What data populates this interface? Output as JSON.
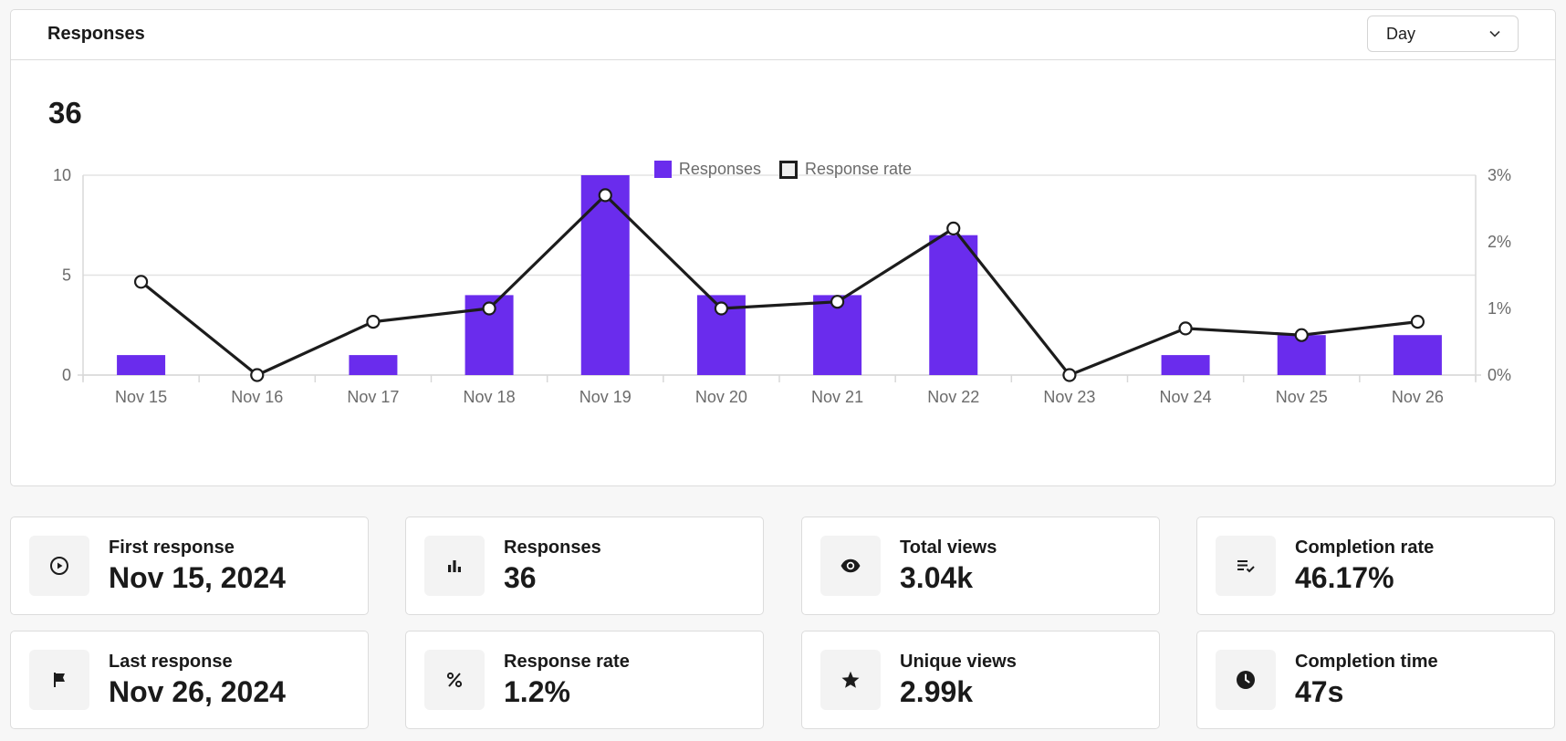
{
  "panel": {
    "title": "Responses",
    "period_select": {
      "selected": "Day"
    },
    "total": "36"
  },
  "legend": {
    "bars": "Responses",
    "line": "Response rate"
  },
  "chart_data": {
    "type": "bar",
    "categories": [
      "Nov 15",
      "Nov 16",
      "Nov 17",
      "Nov 18",
      "Nov 19",
      "Nov 20",
      "Nov 21",
      "Nov 22",
      "Nov 23",
      "Nov 24",
      "Nov 25",
      "Nov 26"
    ],
    "series": [
      {
        "name": "Responses",
        "type": "bar",
        "axis": "left",
        "color": "#6a2ced",
        "values": [
          1,
          0,
          1,
          4,
          10,
          4,
          4,
          7,
          0,
          1,
          2,
          2
        ]
      },
      {
        "name": "Response rate",
        "type": "line",
        "axis": "right",
        "color": "#1c1c1c",
        "values": [
          1.4,
          0,
          0.8,
          1.0,
          2.7,
          1.0,
          1.1,
          2.2,
          0,
          0.7,
          0.6,
          0.8
        ]
      }
    ],
    "y_left": {
      "range": [
        0,
        10
      ],
      "ticks": [
        "0",
        "5",
        "10"
      ]
    },
    "y_right": {
      "range": [
        0,
        3
      ],
      "ticks": [
        "0%",
        "1%",
        "2%",
        "3%"
      ]
    },
    "grid": true,
    "legend_position": "top-center"
  },
  "stats": [
    {
      "label": "First response",
      "value": "Nov 15, 2024",
      "icon": "play-circle-icon"
    },
    {
      "label": "Responses",
      "value": "36",
      "icon": "bar-chart-icon"
    },
    {
      "label": "Total views",
      "value": "3.04k",
      "icon": "eye-icon"
    },
    {
      "label": "Completion rate",
      "value": "46.17%",
      "icon": "list-check-icon"
    },
    {
      "label": "Last response",
      "value": "Nov 26, 2024",
      "icon": "flag-icon"
    },
    {
      "label": "Response rate",
      "value": "1.2%",
      "icon": "percent-icon"
    },
    {
      "label": "Unique views",
      "value": "2.99k",
      "icon": "star-icon"
    },
    {
      "label": "Completion time",
      "value": "47s",
      "icon": "clock-icon"
    }
  ]
}
